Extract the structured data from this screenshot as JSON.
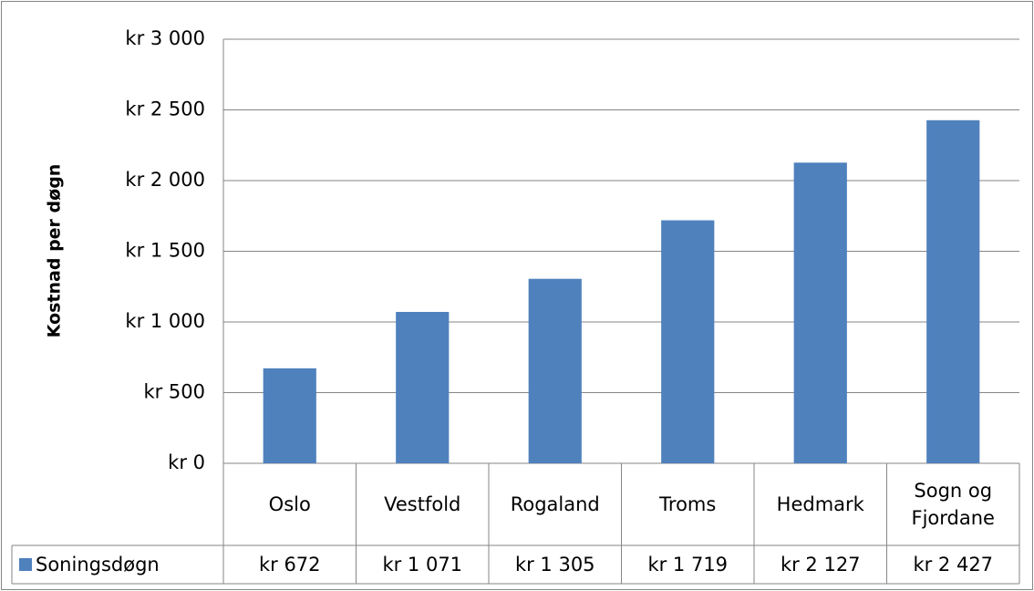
{
  "chart_data": {
    "type": "bar",
    "y_axis_label": "Kostnad per døgn",
    "categories": [
      "Oslo",
      "Vestfold",
      "Rogaland",
      "Troms",
      "Hedmark",
      "Sogn og Fjordane"
    ],
    "series": [
      {
        "name": "Soningsdøgn",
        "color": "#4f81bd",
        "values": [
          672,
          1071,
          1305,
          1719,
          2127,
          2427
        ],
        "value_labels": [
          "kr 672",
          "kr 1 071",
          "kr 1 305",
          "kr 1 719",
          "kr 2 127",
          "kr 2 427"
        ]
      }
    ],
    "ylim": [
      0,
      3000
    ],
    "yticks": [
      {
        "value": 0,
        "label": "kr 0"
      },
      {
        "value": 500,
        "label": "kr 500"
      },
      {
        "value": 1000,
        "label": "kr 1 000"
      },
      {
        "value": 1500,
        "label": "kr 1 500"
      },
      {
        "value": 2000,
        "label": "kr 2 000"
      },
      {
        "value": 2500,
        "label": "kr 2 500"
      },
      {
        "value": 3000,
        "label": "kr 3 000"
      }
    ],
    "grid": true
  }
}
